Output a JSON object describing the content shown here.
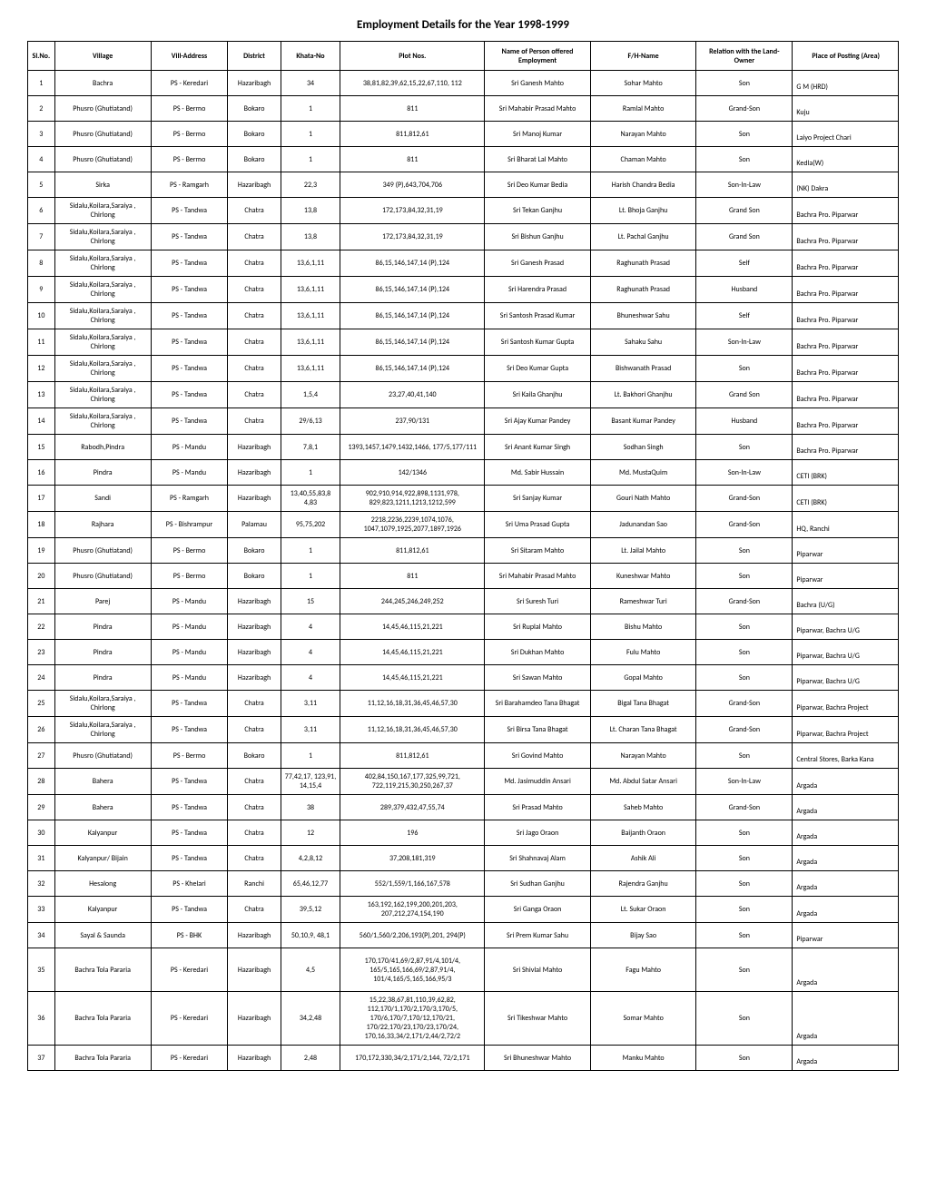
{
  "title": "Employment Details for the Year 1998-1999",
  "headers": {
    "sl": "Sl.No.",
    "village": "Village",
    "villAddr": "Vill-Address",
    "district": "District",
    "khata": "Khata-No",
    "plot": "Plot Nos.",
    "name": "Name of Person offered Employment",
    "fh": "F/H-Name",
    "relation": "Relation with the Land-Owner",
    "place": "Place of Posting (Area)"
  },
  "rows": [
    {
      "sl": "1",
      "village": "Bachra",
      "villAddr": "PS - Keredari",
      "district": "Hazaribagh",
      "khata": "34",
      "plot": "38,81,82,39,62,15,22,67,110, 112",
      "name": "Sri Ganesh Mahto",
      "fh": "Sohar Mahto",
      "relation": "Son",
      "place": "G M (HRD)"
    },
    {
      "sl": "2",
      "village": "Phusro (Ghutiatand)",
      "villAddr": "PS - Bermo",
      "district": "Bokaro",
      "khata": "1",
      "plot": "811",
      "name": "Sri Mahabir Prasad Mahto",
      "fh": "Ramlal Mahto",
      "relation": "Grand-Son",
      "place": "Kuju"
    },
    {
      "sl": "3",
      "village": "Phusro (Ghutiatand)",
      "villAddr": "PS - Bermo",
      "district": "Bokaro",
      "khata": "1",
      "plot": "811,812,61",
      "name": "Sri Manoj Kumar",
      "fh": "Narayan Mahto",
      "relation": "Son",
      "place": "Laiyo Project Chari"
    },
    {
      "sl": "4",
      "village": "Phusro (Ghutiatand)",
      "villAddr": "PS - Bermo",
      "district": "Bokaro",
      "khata": "1",
      "plot": "811",
      "name": "Sri Bharat Lal Mahto",
      "fh": "Chaman Mahto",
      "relation": "Son",
      "place": "Kedla(W)"
    },
    {
      "sl": "5",
      "village": "Sirka",
      "villAddr": "PS - Ramgarh",
      "district": "Hazaribagh",
      "khata": "22,3",
      "plot": "349 (P),643,704,706",
      "name": "Sri Deo Kumar Bedia",
      "fh": "Harish Chandra Bedia",
      "relation": "Son-In-Law",
      "place": "(NK) Dakra"
    },
    {
      "sl": "6",
      "village": "Sidalu,Koilara,Saraiya , Chirlong",
      "villAddr": "PS - Tandwa",
      "district": "Chatra",
      "khata": "13,8",
      "plot": "172,173,84,32,31,19",
      "name": "Sri Tekan Ganjhu",
      "fh": "Lt. Bhoja Ganjhu",
      "relation": "Grand Son",
      "place": "Bachra Pro. Piparwar"
    },
    {
      "sl": "7",
      "village": "Sidalu,Koilara,Saraiya , Chirlong",
      "villAddr": "PS - Tandwa",
      "district": "Chatra",
      "khata": "13,8",
      "plot": "172,173,84,32,31,19",
      "name": "Sri Bishun Ganjhu",
      "fh": "Lt. Pachal Ganjhu",
      "relation": "Grand Son",
      "place": "Bachra Pro. Piparwar"
    },
    {
      "sl": "8",
      "village": "Sidalu,Koilara,Saraiya , Chirlong",
      "villAddr": "PS - Tandwa",
      "district": "Chatra",
      "khata": "13,6,1,11",
      "plot": "86,15,146,147,14 (P),124",
      "name": "Sri Ganesh Prasad",
      "fh": "Raghunath Prasad",
      "relation": "Self",
      "place": "Bachra Pro. Piparwar"
    },
    {
      "sl": "9",
      "village": "Sidalu,Koilara,Saraiya , Chirlong",
      "villAddr": "PS - Tandwa",
      "district": "Chatra",
      "khata": "13,6,1,11",
      "plot": "86,15,146,147,14 (P),124",
      "name": "Sri Harendra Prasad",
      "fh": "Raghunath Prasad",
      "relation": "Husband",
      "place": "Bachra Pro. Piparwar"
    },
    {
      "sl": "10",
      "village": "Sidalu,Koilara,Saraiya , Chirlong",
      "villAddr": "PS - Tandwa",
      "district": "Chatra",
      "khata": "13,6,1,11",
      "plot": "86,15,146,147,14 (P),124",
      "name": "Sri Santosh Prasad Kumar",
      "fh": "Bhuneshwar Sahu",
      "relation": "Self",
      "place": "Bachra Pro. Piparwar"
    },
    {
      "sl": "11",
      "village": "Sidalu,Koilara,Saraiya , Chirlong",
      "villAddr": "PS - Tandwa",
      "district": "Chatra",
      "khata": "13,6,1,11",
      "plot": "86,15,146,147,14 (P),124",
      "name": "Sri Santosh Kumar Gupta",
      "fh": "Sahaku Sahu",
      "relation": "Son-In-Law",
      "place": "Bachra Pro. Piparwar"
    },
    {
      "sl": "12",
      "village": "Sidalu,Koilara,Saraiya , Chirlong",
      "villAddr": "PS - Tandwa",
      "district": "Chatra",
      "khata": "13,6,1,11",
      "plot": "86,15,146,147,14 (P),124",
      "name": "Sri Deo Kumar Gupta",
      "fh": "Bishwanath Prasad",
      "relation": "Son",
      "place": "Bachra Pro. Piparwar"
    },
    {
      "sl": "13",
      "village": "Sidalu,Koilara,Saraiya , Chirlong",
      "villAddr": "PS - Tandwa",
      "district": "Chatra",
      "khata": "1,5,4",
      "plot": "23,27,40,41,140",
      "name": "Sri Kaila Ghanjhu",
      "fh": "Lt. Bakhori Ghanjhu",
      "relation": "Grand Son",
      "place": "Bachra Pro. Piparwar"
    },
    {
      "sl": "14",
      "village": "Sidalu,Koilara,Saraiya , Chirlong",
      "villAddr": "PS - Tandwa",
      "district": "Chatra",
      "khata": "29/6,13",
      "plot": "237,90/131",
      "name": "Sri Ajay Kumar Pandey",
      "fh": "Basant Kumar Pandey",
      "relation": "Husband",
      "place": "Bachra Pro. Piparwar"
    },
    {
      "sl": "15",
      "village": "Rabodh,Pindra",
      "villAddr": "PS - Mandu",
      "district": "Hazaribagh",
      "khata": "7,8,1",
      "plot": "1393,1457,1479,1432,1466, 177/5,177/111",
      "name": "Sri Anant Kumar Singh",
      "fh": "Sodhan Singh",
      "relation": "Son",
      "place": "Bachra Pro. Piparwar"
    },
    {
      "sl": "16",
      "village": "Pindra",
      "villAddr": "PS - Mandu",
      "district": "Hazaribagh",
      "khata": "1",
      "plot": "142/1346",
      "name": "Md. Sabir Hussain",
      "fh": "Md. MustaQuim",
      "relation": "Son-In-Law",
      "place": "CETI (BRK)"
    },
    {
      "sl": "17",
      "village": "Sandi",
      "villAddr": "PS - Ramgarh",
      "district": "Hazaribagh",
      "khata": "13,40,55,83,8 4,83",
      "plot": "902,910,914,922,898,1131,978, 829,823,1211,1213,1212,599",
      "name": "Sri Sanjay Kumar",
      "fh": "Gouri Nath Mahto",
      "relation": "Grand-Son",
      "place": "CETI (BRK)"
    },
    {
      "sl": "18",
      "village": "Rajhara",
      "villAddr": "PS - Bishrampur",
      "district": "Palamau",
      "khata": "95,75,202",
      "plot": "2218,2236,2239,1074,1076, 1047,1079,1925,2077,1897,1926",
      "name": "Sri Uma Prasad Gupta",
      "fh": "Jadunandan Sao",
      "relation": "Grand-Son",
      "place": "HQ, Ranchi"
    },
    {
      "sl": "19",
      "village": "Phusro (Ghutiatand)",
      "villAddr": "PS - Bermo",
      "district": "Bokaro",
      "khata": "1",
      "plot": "811,812,61",
      "name": "Sri Sitaram Mahto",
      "fh": "Lt. Jailal Mahto",
      "relation": "Son",
      "place": "Piparwar"
    },
    {
      "sl": "20",
      "village": "Phusro (Ghutiatand)",
      "villAddr": "PS - Bermo",
      "district": "Bokaro",
      "khata": "1",
      "plot": "811",
      "name": "Sri Mahabir Prasad Mahto",
      "fh": "Kuneshwar Mahto",
      "relation": "Son",
      "place": "Piparwar"
    },
    {
      "sl": "21",
      "village": "Parej",
      "villAddr": "PS - Mandu",
      "district": "Hazaribagh",
      "khata": "15",
      "plot": "244,245,246,249,252",
      "name": "Sri Suresh Turi",
      "fh": "Rameshwar Turi",
      "relation": "Grand-Son",
      "place": "Bachra (U/G)"
    },
    {
      "sl": "22",
      "village": "Pindra",
      "villAddr": "PS - Mandu",
      "district": "Hazaribagh",
      "khata": "4",
      "plot": "14,45,46,115,21,221",
      "name": "Sri Ruplal Mahto",
      "fh": "Bishu Mahto",
      "relation": "Son",
      "place": "Piparwar, Bachra U/G"
    },
    {
      "sl": "23",
      "village": "Pindra",
      "villAddr": "PS - Mandu",
      "district": "Hazaribagh",
      "khata": "4",
      "plot": "14,45,46,115,21,221",
      "name": "Sri Dukhan Mahto",
      "fh": "Fulu Mahto",
      "relation": "Son",
      "place": "Piparwar, Bachra U/G"
    },
    {
      "sl": "24",
      "village": "Pindra",
      "villAddr": "PS - Mandu",
      "district": "Hazaribagh",
      "khata": "4",
      "plot": "14,45,46,115,21,221",
      "name": "Sri Sawan Mahto",
      "fh": "Gopal Mahto",
      "relation": "Son",
      "place": "Piparwar, Bachra U/G"
    },
    {
      "sl": "25",
      "village": "Sidalu,Koilara,Saraiya , Chirlong",
      "villAddr": "PS - Tandwa",
      "district": "Chatra",
      "khata": "3,11",
      "plot": "11,12,16,18,31,36,45,46,57,30",
      "name": "Sri Barahamdeo Tana Bhagat",
      "fh": "Bigal Tana Bhagat",
      "relation": "Grand-Son",
      "place": "Piparwar, Bachra Project"
    },
    {
      "sl": "26",
      "village": "Sidalu,Koilara,Saraiya , Chirlong",
      "villAddr": "PS - Tandwa",
      "district": "Chatra",
      "khata": "3,11",
      "plot": "11,12,16,18,31,36,45,46,57,30",
      "name": "Sri Birsa Tana Bhagat",
      "fh": "Lt. Charan Tana Bhagat",
      "relation": "Grand-Son",
      "place": "Piparwar, Bachra Project"
    },
    {
      "sl": "27",
      "village": "Phusro (Ghutiatand)",
      "villAddr": "PS - Bermo",
      "district": "Bokaro",
      "khata": "1",
      "plot": "811,812,61",
      "name": "Sri Govind Mahto",
      "fh": "Narayan Mahto",
      "relation": "Son",
      "place": "Central Stores, Barka Kana"
    },
    {
      "sl": "28",
      "village": "Bahera",
      "villAddr": "PS - Tandwa",
      "district": "Chatra",
      "khata": "77,42,17, 123,91, 14,15,4",
      "plot": "402,84,150,167,177,325,99,721, 722,119,215,30,250,267,37",
      "name": "Md. Jasimuddin Ansari",
      "fh": "Md. Abdul Satar Ansari",
      "relation": "Son-In-Law",
      "place": "Argada"
    },
    {
      "sl": "29",
      "village": "Bahera",
      "villAddr": "PS - Tandwa",
      "district": "Chatra",
      "khata": "38",
      "plot": "289,379,432,47,55,74",
      "name": "Sri Prasad Mahto",
      "fh": "Saheb Mahto",
      "relation": "Grand-Son",
      "place": "Argada"
    },
    {
      "sl": "30",
      "village": "Kalyanpur",
      "villAddr": "PS - Tandwa",
      "district": "Chatra",
      "khata": "12",
      "plot": "196",
      "name": "Sri Jago Oraon",
      "fh": "Baijanth Oraon",
      "relation": "Son",
      "place": "Argada"
    },
    {
      "sl": "31",
      "village": "Kalyanpur/ Bijain",
      "villAddr": "PS - Tandwa",
      "district": "Chatra",
      "khata": "4,2,8,12",
      "plot": "37,208,181,319",
      "name": "Sri Shahnavaj Alam",
      "fh": "Ashik Ali",
      "relation": "Son",
      "place": "Argada"
    },
    {
      "sl": "32",
      "village": "Hesalong",
      "villAddr": "PS - Khelari",
      "district": "Ranchi",
      "khata": "65,46,12,77",
      "plot": "552/1,559/1,166,167,578",
      "name": "Sri Sudhan Ganjhu",
      "fh": "Rajendra Ganjhu",
      "relation": "Son",
      "place": "Argada"
    },
    {
      "sl": "33",
      "village": "Kalyanpur",
      "villAddr": "PS - Tandwa",
      "district": "Chatra",
      "khata": "39,5,12",
      "plot": "163,192,162,199,200,201,203, 207,212,274,154,190",
      "name": "Sri Ganga Oraon",
      "fh": "Lt. Sukar Oraon",
      "relation": "Son",
      "place": "Argada"
    },
    {
      "sl": "34",
      "village": "Sayal & Saunda",
      "villAddr": "PS - BHK",
      "district": "Hazaribagh",
      "khata": "50,10,9, 48,1",
      "plot": "560/1,560/2,206,193(P),201, 294(P)",
      "name": "Sri Prem Kumar Sahu",
      "fh": "Bijay Sao",
      "relation": "Son",
      "place": "Piparwar"
    },
    {
      "sl": "35",
      "village": "Bachra Tola Pararia",
      "villAddr": "PS - Keredari",
      "district": "Hazaribagh",
      "khata": "4,5",
      "plot": "170,170/41,69/2,87,91/4,101/4, 165/5,165,166,69/2,87,91/4, 101/4,165/5,165,166,95/3",
      "name": "Sri Shivlal Mahto",
      "fh": "Fagu Mahto",
      "relation": "Son",
      "place": "Argada",
      "rowClass": "tall-row"
    },
    {
      "sl": "36",
      "village": "Bachra Tola Pararia",
      "villAddr": "PS - Keredari",
      "district": "Hazaribagh",
      "khata": "34,2,48",
      "plot": "15,22,38,67,81,110,39,62,82, 112,170/1,170/2,170/3,170/5, 170/6,170/7,170/12,170/21, 170/22,170/23,170/23,170/24, 170,16,33,34/2,171/2,44/2,72/2",
      "name": "Sri Tikeshwar Mahto",
      "fh": "Somar Mahto",
      "relation": "Son",
      "place": "Argada",
      "rowClass": "taller-row"
    },
    {
      "sl": "37",
      "village": "Bachra Tola Pararia",
      "villAddr": "PS - Keredari",
      "district": "Hazaribagh",
      "khata": "2,48",
      "plot": "170,172,330,34/2,171/2,144, 72/2,171",
      "name": "Sri Bhuneshwar Mahto",
      "fh": "Manku Mahto",
      "relation": "Son",
      "place": "Argada"
    }
  ]
}
